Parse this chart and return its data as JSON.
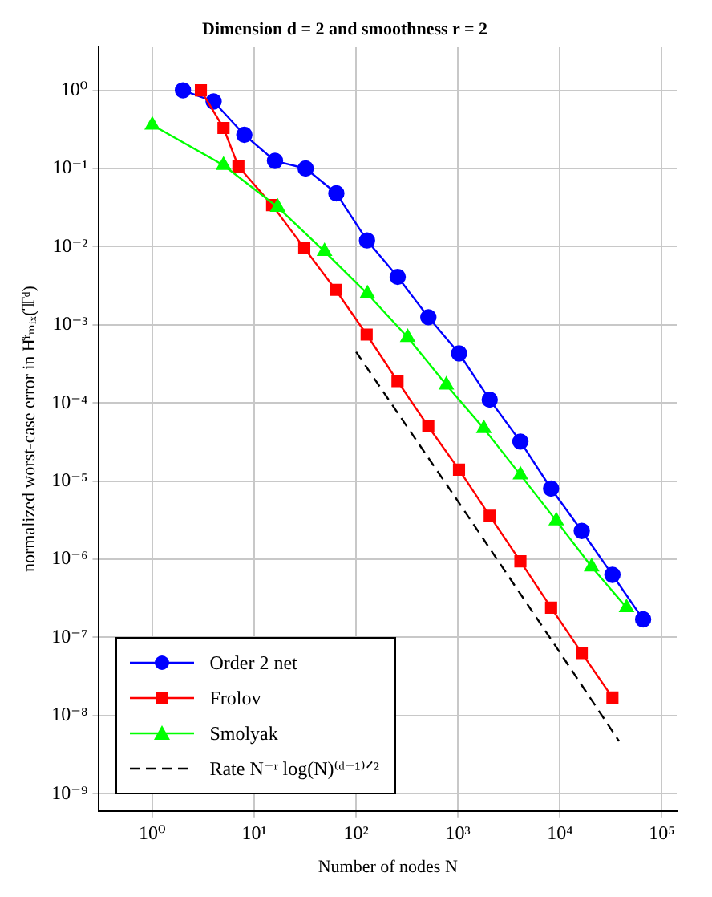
{
  "chart_data": {
    "type": "line",
    "title": "Dimension d = 2 and smoothness r = 2",
    "xlabel": "Number of nodes N",
    "ylabel": "normalized worst-case error in H̊ʳₘᵢₓ(𝕋ᵈ)",
    "log": "xy",
    "grid": true,
    "legend": "bottom left",
    "xlim": [
      0.33,
      140000
    ],
    "ylim": [
      6e-10,
      3.6
    ],
    "xticks": [
      {
        "value": 1,
        "label": "10⁰"
      },
      {
        "value": 10,
        "label": "10¹"
      },
      {
        "value": 100,
        "label": "10²"
      },
      {
        "value": 1000,
        "label": "10³"
      },
      {
        "value": 10000,
        "label": "10⁴"
      },
      {
        "value": 100000,
        "label": "10⁵"
      }
    ],
    "yticks": [
      {
        "value": 1e-09,
        "label": "10⁻⁹"
      },
      {
        "value": 1e-08,
        "label": "10⁻⁸"
      },
      {
        "value": 1e-07,
        "label": "10⁻⁷"
      },
      {
        "value": 1e-06,
        "label": "10⁻⁶"
      },
      {
        "value": 1e-05,
        "label": "10⁻⁵"
      },
      {
        "value": 0.0001,
        "label": "10⁻⁴"
      },
      {
        "value": 0.001,
        "label": "10⁻³"
      },
      {
        "value": 0.01,
        "label": "10⁻²"
      },
      {
        "value": 0.1,
        "label": "10⁻¹"
      },
      {
        "value": 1,
        "label": "10⁰"
      }
    ],
    "series": [
      {
        "name": "Order 2 net",
        "color": "#0000ff",
        "marker": "circle",
        "line_style": "solid",
        "x": [
          2,
          4,
          8,
          16,
          32,
          64,
          128,
          256,
          512,
          1024,
          2048,
          4096,
          8192,
          16384,
          32768,
          65536
        ],
        "values": [
          1.0,
          0.72,
          0.27,
          0.125,
          0.1,
          0.048,
          0.012,
          0.0041,
          0.00125,
          0.00043,
          0.00011,
          3.2e-05,
          8e-06,
          2.3e-06,
          6.3e-07,
          1.7e-07
        ]
      },
      {
        "name": "Frolov",
        "color": "#ff0000",
        "marker": "square",
        "line_style": "solid",
        "x": [
          3,
          5,
          7,
          15,
          31,
          63,
          127,
          255,
          511,
          1023,
          2047,
          4095,
          8191,
          16383,
          32767
        ],
        "values": [
          1.0,
          0.33,
          0.106,
          0.034,
          0.0096,
          0.0028,
          0.00075,
          0.00019,
          5e-05,
          1.4e-05,
          3.6e-06,
          9.4e-07,
          2.4e-07,
          6.3e-08,
          1.7e-08
        ]
      },
      {
        "name": "Smolyak",
        "color": "#00ff00",
        "marker": "triangle",
        "line_style": "solid",
        "x": [
          1,
          5,
          17,
          49,
          129,
          321,
          769,
          1793,
          4097,
          9217,
          20481,
          45057
        ],
        "values": [
          0.36,
          0.11,
          0.032,
          0.0087,
          0.0025,
          0.00069,
          0.00017,
          4.7e-05,
          1.2e-05,
          3.1e-06,
          8e-07,
          2.4e-07
        ]
      },
      {
        "name": "Rate N⁻ʳ log(N)⁽ᵈ⁻¹⁾ᐟ²",
        "color": "#000000",
        "marker": "none",
        "line_style": "dashed",
        "x": [
          100,
          1000,
          10000,
          38000
        ],
        "values": [
          0.00045,
          5.5e-06,
          6.4e-08,
          4.7e-09
        ]
      }
    ]
  }
}
